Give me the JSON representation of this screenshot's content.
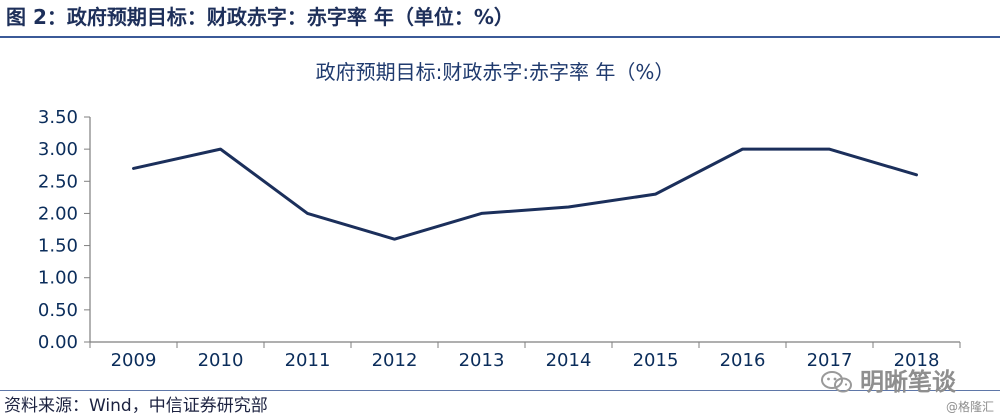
{
  "figure": {
    "title": "图 2：政府预期目标：财政赤字：赤字率  年（单位：%）"
  },
  "source": {
    "text": "资料来源：Wind，中信证券研究部"
  },
  "watermark": {
    "text": "明晰笔谈",
    "icon": "wechat-icon"
  },
  "credit": {
    "text": "@格隆汇"
  },
  "colors": {
    "line": "#1b2f5b",
    "axis": "#7f7f7f",
    "title_rule": "#3b5a98"
  },
  "chart_data": {
    "type": "line",
    "title": "政府预期目标:财政赤字:赤字率  年（%）",
    "xlabel": "",
    "ylabel": "",
    "categories": [
      "2009",
      "2010",
      "2011",
      "2012",
      "2013",
      "2014",
      "2015",
      "2016",
      "2017",
      "2018"
    ],
    "series": [
      {
        "values": [
          2.7,
          3.0,
          2.0,
          1.6,
          2.0,
          2.1,
          2.3,
          3.0,
          3.0,
          2.6
        ]
      }
    ],
    "y_ticks": [
      "0.00",
      "0.50",
      "1.00",
      "1.50",
      "2.00",
      "2.50",
      "3.00",
      "3.50"
    ],
    "ylim": [
      0,
      3.5
    ],
    "grid": false,
    "legend": "none"
  }
}
